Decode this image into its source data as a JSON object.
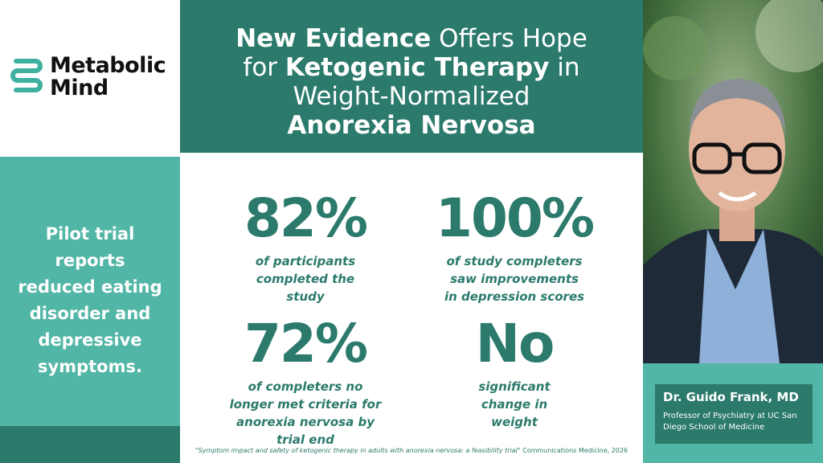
{
  "logo": {
    "lines": [
      "Metabolic",
      "Mind"
    ]
  },
  "header": {
    "title_lines": [
      [
        {
          "text": "New Evidence",
          "bold": true
        },
        {
          "text": " Offers Hope",
          "bold": false
        }
      ],
      [
        {
          "text": "for ",
          "bold": false
        },
        {
          "text": "Ketogenic Therapy",
          "bold": true
        },
        {
          "text": " in",
          "bold": false
        }
      ],
      [
        {
          "text": "Weight-Normalized",
          "bold": false
        }
      ],
      [
        {
          "text": "Anorexia Nervosa",
          "bold": true
        }
      ]
    ]
  },
  "tagline": "Pilot trial reports reduced eating disorder and depressive symptoms.",
  "stats": [
    {
      "value": "82%",
      "description": "of participants completed the study"
    },
    {
      "value": "100%",
      "description": "of study completers saw improvements in depression scores"
    },
    {
      "value": "72%",
      "description": "of completers no longer met criteria for anorexia nervosa by trial end"
    },
    {
      "value": "No",
      "description": "significant change in weight"
    }
  ],
  "citation": {
    "title": "\"Symptom impact and safety of ketogenic therapy in adults with anorexia nervosa: a feasibility trial\"",
    "source": " Communications Medicine, 2026"
  },
  "person": {
    "name": "Dr. Guido Frank, MD",
    "role": "Professor of Psychiatry at UC San Diego School of Medicine"
  }
}
